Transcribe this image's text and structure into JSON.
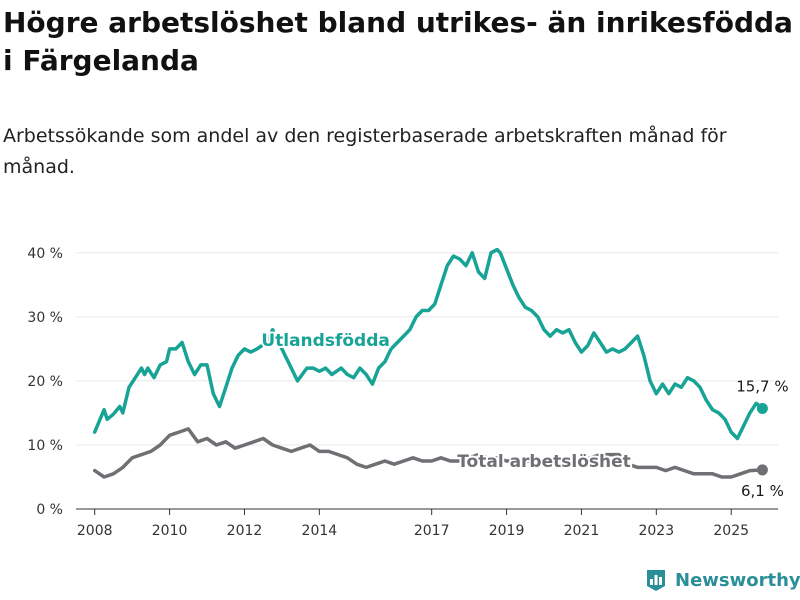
{
  "title": "Högre arbetslöshet bland utrikes- än inrikesfödda i Färgelanda",
  "subtitle": "Arbetssökande som andel av den registerbaserade arbetskraften månad för månad.",
  "brand": "Newsworthy",
  "colors": {
    "foreign": "#17a395",
    "total": "#6f6f74",
    "grid": "#e8e8e8",
    "axis": "#333333",
    "label_halo": "#ffffff"
  },
  "chart_data": {
    "type": "line",
    "title": "Högre arbetslöshet bland utrikes- än inrikesfödda i Färgelanda",
    "xlabel": "",
    "ylabel": "",
    "x_ticks": [
      "2008",
      "2010",
      "2012",
      "2014",
      "2017",
      "2019",
      "2021",
      "2023",
      "2025"
    ],
    "y_ticks": [
      "0 %",
      "10 %",
      "20 %",
      "30 %",
      "40 %"
    ],
    "ylim": [
      0,
      42
    ],
    "xlim": [
      "2007-07",
      "2026-04"
    ],
    "grid": "horizontal",
    "legend": "inline labels",
    "series": [
      {
        "name": "Utlandsfödda",
        "end_label": "15,7 %",
        "end_value": 15.7,
        "points": [
          [
            "2008-01",
            12
          ],
          [
            "2008-04",
            15.5
          ],
          [
            "2008-05",
            14
          ],
          [
            "2008-07",
            14.8
          ],
          [
            "2008-09",
            16
          ],
          [
            "2008-10",
            15
          ],
          [
            "2008-12",
            19
          ],
          [
            "2009-02",
            20.5
          ],
          [
            "2009-04",
            22
          ],
          [
            "2009-05",
            21
          ],
          [
            "2009-06",
            22
          ],
          [
            "2009-08",
            20.5
          ],
          [
            "2009-10",
            22.5
          ],
          [
            "2009-12",
            23
          ],
          [
            "2010-01",
            25
          ],
          [
            "2010-03",
            25
          ],
          [
            "2010-05",
            26
          ],
          [
            "2010-07",
            23
          ],
          [
            "2010-09",
            21
          ],
          [
            "2010-11",
            22.5
          ],
          [
            "2011-01",
            22.5
          ],
          [
            "2011-03",
            18
          ],
          [
            "2011-05",
            16
          ],
          [
            "2011-07",
            19
          ],
          [
            "2011-09",
            22
          ],
          [
            "2011-11",
            24
          ],
          [
            "2012-01",
            25
          ],
          [
            "2012-03",
            24.5
          ],
          [
            "2012-05",
            25
          ],
          [
            "2012-08",
            26
          ],
          [
            "2012-10",
            28
          ],
          [
            "2012-12",
            26
          ],
          [
            "2013-02",
            24
          ],
          [
            "2013-04",
            22
          ],
          [
            "2013-06",
            20
          ],
          [
            "2013-09",
            22
          ],
          [
            "2013-11",
            22
          ],
          [
            "2014-01",
            21.5
          ],
          [
            "2014-03",
            22
          ],
          [
            "2014-05",
            21
          ],
          [
            "2014-08",
            22
          ],
          [
            "2014-10",
            21
          ],
          [
            "2014-12",
            20.5
          ],
          [
            "2015-02",
            22
          ],
          [
            "2015-04",
            21
          ],
          [
            "2015-06",
            19.5
          ],
          [
            "2015-08",
            22
          ],
          [
            "2015-10",
            23
          ],
          [
            "2015-12",
            25
          ],
          [
            "2016-02",
            26
          ],
          [
            "2016-04",
            27
          ],
          [
            "2016-06",
            28
          ],
          [
            "2016-08",
            30
          ],
          [
            "2016-10",
            31
          ],
          [
            "2016-12",
            31
          ],
          [
            "2017-02",
            32
          ],
          [
            "2017-04",
            35
          ],
          [
            "2017-06",
            38
          ],
          [
            "2017-08",
            39.5
          ],
          [
            "2017-10",
            39
          ],
          [
            "2017-12",
            38
          ],
          [
            "2018-02",
            40
          ],
          [
            "2018-04",
            37
          ],
          [
            "2018-06",
            36
          ],
          [
            "2018-08",
            40
          ],
          [
            "2018-10",
            40.5
          ],
          [
            "2018-11",
            40
          ],
          [
            "2019-01",
            37.5
          ],
          [
            "2019-03",
            35
          ],
          [
            "2019-05",
            33
          ],
          [
            "2019-07",
            31.5
          ],
          [
            "2019-09",
            31
          ],
          [
            "2019-11",
            30
          ],
          [
            "2020-01",
            28
          ],
          [
            "2020-03",
            27
          ],
          [
            "2020-05",
            28
          ],
          [
            "2020-07",
            27.5
          ],
          [
            "2020-09",
            28
          ],
          [
            "2020-11",
            26
          ],
          [
            "2021-01",
            24.5
          ],
          [
            "2021-03",
            25.5
          ],
          [
            "2021-05",
            27.5
          ],
          [
            "2021-07",
            26
          ],
          [
            "2021-09",
            24.5
          ],
          [
            "2021-11",
            25
          ],
          [
            "2022-01",
            24.5
          ],
          [
            "2022-03",
            25
          ],
          [
            "2022-05",
            26
          ],
          [
            "2022-07",
            27
          ],
          [
            "2022-09",
            24
          ],
          [
            "2022-11",
            20
          ],
          [
            "2023-01",
            18
          ],
          [
            "2023-03",
            19.5
          ],
          [
            "2023-05",
            18
          ],
          [
            "2023-07",
            19.5
          ],
          [
            "2023-09",
            19
          ],
          [
            "2023-11",
            20.5
          ],
          [
            "2024-01",
            20
          ],
          [
            "2024-03",
            19
          ],
          [
            "2024-05",
            17
          ],
          [
            "2024-07",
            15.5
          ],
          [
            "2024-09",
            15
          ],
          [
            "2024-11",
            14
          ],
          [
            "2025-01",
            12
          ],
          [
            "2025-03",
            11
          ],
          [
            "2025-05",
            13
          ],
          [
            "2025-07",
            15
          ],
          [
            "2025-09",
            16.5
          ],
          [
            "2025-11",
            15.7
          ]
        ]
      },
      {
        "name": "Total arbetslöshet",
        "end_label": "6,1 %",
        "end_value": 6.1,
        "points": [
          [
            "2008-01",
            6
          ],
          [
            "2008-04",
            5
          ],
          [
            "2008-07",
            5.5
          ],
          [
            "2008-10",
            6.5
          ],
          [
            "2009-01",
            8
          ],
          [
            "2009-04",
            8.5
          ],
          [
            "2009-07",
            9
          ],
          [
            "2009-10",
            10
          ],
          [
            "2010-01",
            11.5
          ],
          [
            "2010-04",
            12
          ],
          [
            "2010-07",
            12.5
          ],
          [
            "2010-10",
            10.5
          ],
          [
            "2011-01",
            11
          ],
          [
            "2011-04",
            10
          ],
          [
            "2011-07",
            10.5
          ],
          [
            "2011-10",
            9.5
          ],
          [
            "2012-01",
            10
          ],
          [
            "2012-04",
            10.5
          ],
          [
            "2012-07",
            11
          ],
          [
            "2012-10",
            10
          ],
          [
            "2013-01",
            9.5
          ],
          [
            "2013-04",
            9
          ],
          [
            "2013-07",
            9.5
          ],
          [
            "2013-10",
            10
          ],
          [
            "2014-01",
            9
          ],
          [
            "2014-04",
            9
          ],
          [
            "2014-07",
            8.5
          ],
          [
            "2014-10",
            8
          ],
          [
            "2015-01",
            7
          ],
          [
            "2015-04",
            6.5
          ],
          [
            "2015-07",
            7
          ],
          [
            "2015-10",
            7.5
          ],
          [
            "2016-01",
            7
          ],
          [
            "2016-04",
            7.5
          ],
          [
            "2016-07",
            8
          ],
          [
            "2016-10",
            7.5
          ],
          [
            "2017-01",
            7.5
          ],
          [
            "2017-04",
            8
          ],
          [
            "2017-07",
            7.5
          ],
          [
            "2017-10",
            7.5
          ],
          [
            "2018-01",
            8
          ],
          [
            "2018-04",
            8.5
          ],
          [
            "2018-07",
            8
          ],
          [
            "2018-10",
            8
          ],
          [
            "2019-01",
            7.5
          ],
          [
            "2019-04",
            7.5
          ],
          [
            "2019-07",
            7.5
          ],
          [
            "2019-10",
            7.5
          ],
          [
            "2020-01",
            7.5
          ],
          [
            "2020-04",
            8
          ],
          [
            "2020-07",
            7.5
          ],
          [
            "2020-10",
            7.5
          ],
          [
            "2021-01",
            7.5
          ],
          [
            "2021-04",
            8
          ],
          [
            "2021-07",
            8.5
          ],
          [
            "2021-10",
            8.5
          ],
          [
            "2022-01",
            8.5
          ],
          [
            "2022-04",
            7
          ],
          [
            "2022-07",
            6.5
          ],
          [
            "2022-10",
            6.5
          ],
          [
            "2023-01",
            6.5
          ],
          [
            "2023-04",
            6
          ],
          [
            "2023-07",
            6.5
          ],
          [
            "2023-10",
            6
          ],
          [
            "2024-01",
            5.5
          ],
          [
            "2024-04",
            5.5
          ],
          [
            "2024-07",
            5.5
          ],
          [
            "2024-10",
            5
          ],
          [
            "2025-01",
            5
          ],
          [
            "2025-04",
            5.5
          ],
          [
            "2025-07",
            6
          ],
          [
            "2025-11",
            6.1
          ]
        ]
      }
    ]
  }
}
